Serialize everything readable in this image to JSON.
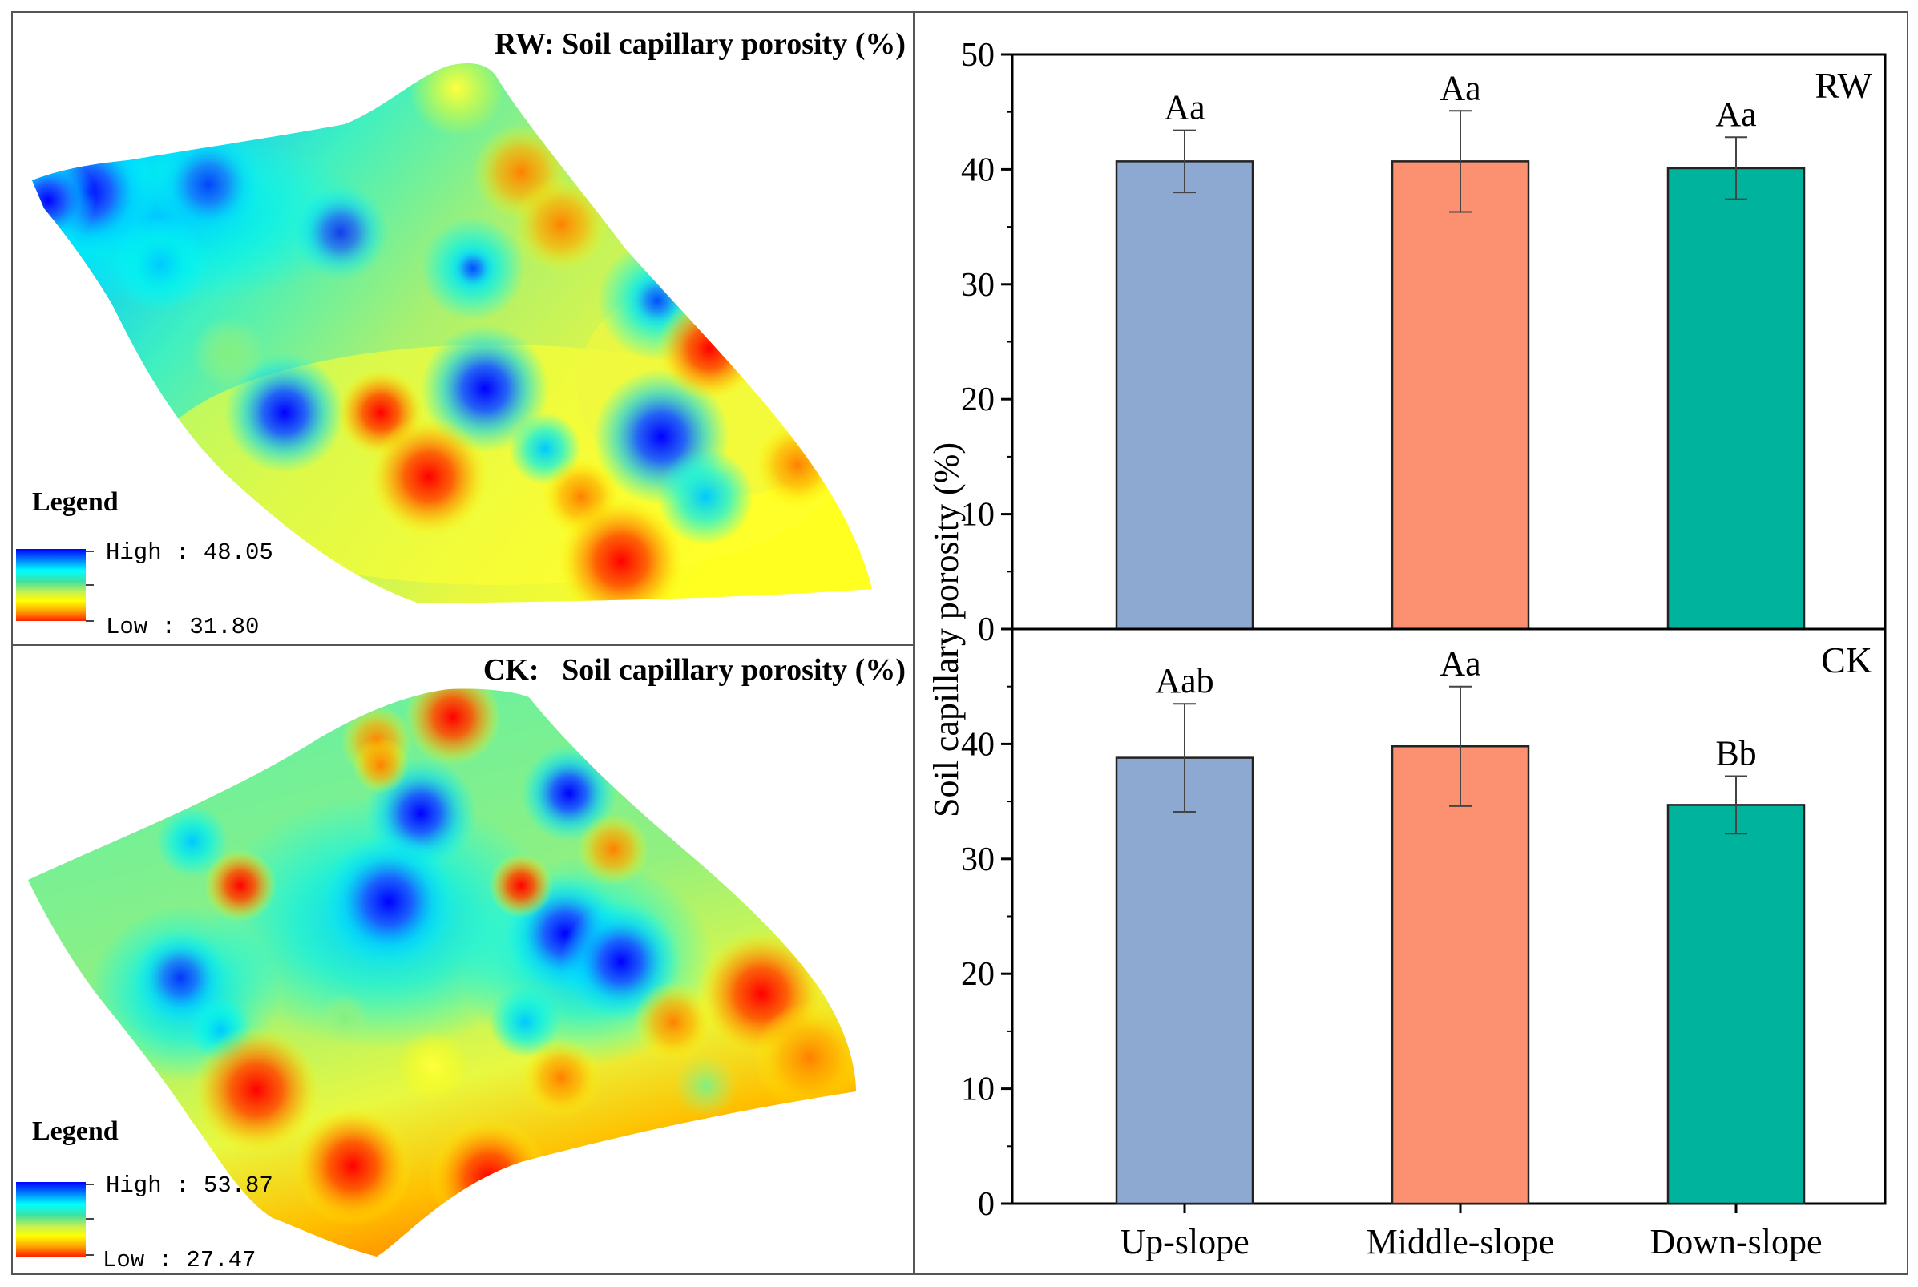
{
  "maps": {
    "rw": {
      "title": "RW: Soil capillary porosity (%)",
      "legend_title": "Legend",
      "high_label": "High : 48.05",
      "low_label": "Low : 31.80"
    },
    "ck": {
      "title": "CK:   Soil capillary porosity (%)",
      "legend_title": "Legend",
      "high_label": "High : 53.87",
      "low_label": "Low : 27.47"
    },
    "ramp_colors": [
      "#0000ff",
      "#00bfff",
      "#00ffff",
      "#40e0a0",
      "#c8f050",
      "#ffff00",
      "#ffa500",
      "#ff2000"
    ]
  },
  "chart_data": [
    {
      "type": "bar",
      "panel": "RW",
      "panel_label": "RW",
      "categories": [
        "Up-slope",
        "Middle-slope",
        "Down-slope"
      ],
      "values": [
        40.7,
        40.7,
        40.1
      ],
      "errors": [
        2.7,
        4.4,
        2.7
      ],
      "annotations": [
        "Aa",
        "Aa",
        "Aa"
      ],
      "bar_colors": [
        "#8ea9d1",
        "#fc9172",
        "#00b39d"
      ],
      "ylabel": "Soil capillary porosity (%)",
      "ylim": [
        0,
        50
      ],
      "yticks": [
        0,
        10,
        20,
        30,
        40,
        50
      ]
    },
    {
      "type": "bar",
      "panel": "CK",
      "panel_label": "CK",
      "categories": [
        "Up-slope",
        "Middle-slope",
        "Down-slope"
      ],
      "values": [
        38.8,
        39.8,
        34.7
      ],
      "errors": [
        4.7,
        5.2,
        2.5
      ],
      "annotations": [
        "Aab",
        "Aa",
        "Bb"
      ],
      "bar_colors": [
        "#8ea9d1",
        "#fc9172",
        "#00b39d"
      ],
      "ylabel": "Soil capillary porosity (%)",
      "ylim": [
        0,
        50
      ],
      "yticks": [
        0,
        10,
        20,
        30,
        40
      ]
    }
  ]
}
